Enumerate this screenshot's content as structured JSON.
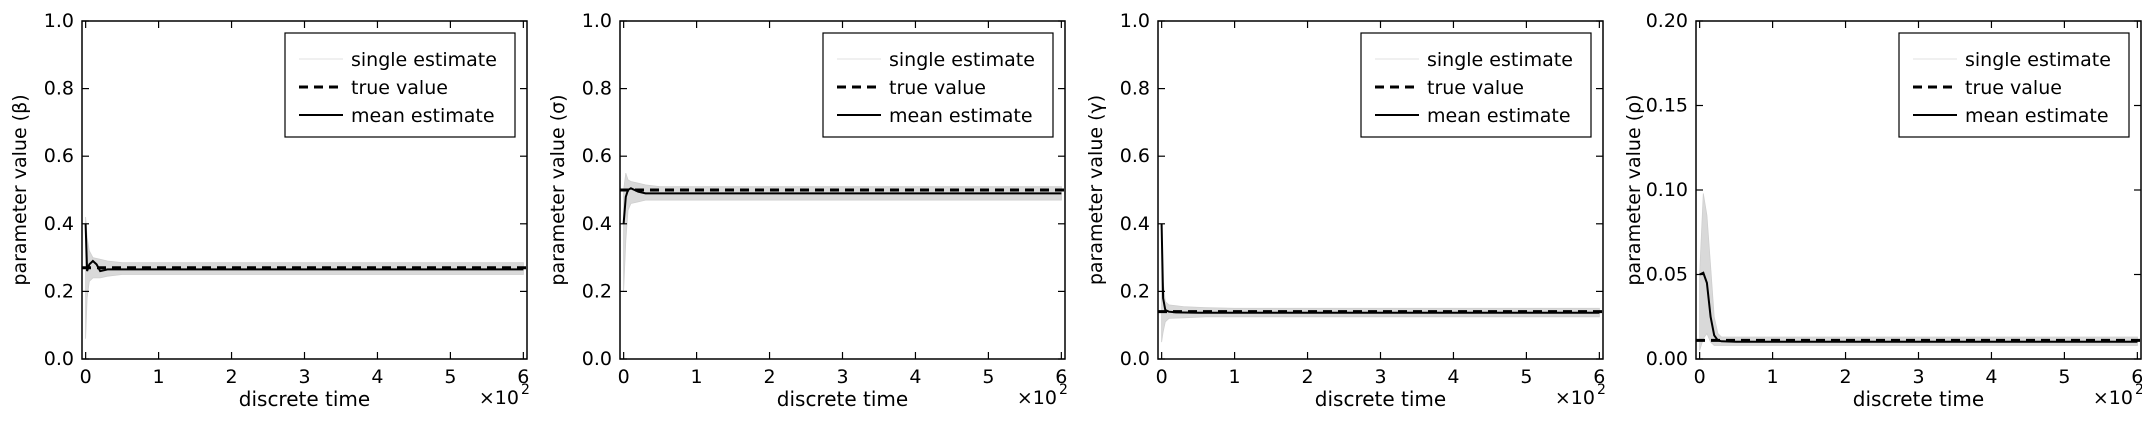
{
  "figure": {
    "xlabel": "discrete time",
    "x_multiplier": "×10",
    "x_multiplier_exp": "2",
    "legend": [
      {
        "label": "single estimate",
        "style": "thin-gray"
      },
      {
        "label": "true value",
        "style": "dashed-black"
      },
      {
        "label": "mean estimate",
        "style": "solid-black"
      }
    ]
  },
  "chart_data": [
    {
      "type": "line",
      "ylabel": "parameter value (β)",
      "xlim": [
        -0.05,
        6.05
      ],
      "ylim": [
        0,
        1.0
      ],
      "x_ticks": [
        "0",
        "1",
        "2",
        "3",
        "4",
        "5",
        "6"
      ],
      "y_ticks": [
        "0.0",
        "0.2",
        "0.4",
        "0.6",
        "0.8",
        "1.0"
      ],
      "y_tick_values": [
        0,
        0.2,
        0.4,
        0.6,
        0.8,
        1.0
      ],
      "true_value": 0.27,
      "mean_estimate": {
        "x": [
          0,
          0.02,
          0.05,
          0.1,
          0.15,
          0.2,
          0.3,
          0.5,
          1,
          2,
          3,
          4,
          5,
          6
        ],
        "y": [
          0.4,
          0.26,
          0.28,
          0.29,
          0.28,
          0.26,
          0.265,
          0.265,
          0.265,
          0.265,
          0.265,
          0.265,
          0.265,
          0.265
        ]
      },
      "single_estimate_band": {
        "x": [
          0,
          0.02,
          0.05,
          0.1,
          0.2,
          0.3,
          0.5,
          1,
          6
        ],
        "lower": [
          0.06,
          0.18,
          0.23,
          0.24,
          0.24,
          0.245,
          0.25,
          0.25,
          0.25
        ],
        "upper": [
          0.42,
          0.36,
          0.32,
          0.3,
          0.295,
          0.29,
          0.285,
          0.285,
          0.285
        ]
      },
      "legend_position": "top-right",
      "grid": false
    },
    {
      "type": "line",
      "ylabel": "parameter value (σ)",
      "xlim": [
        -0.05,
        6.05
      ],
      "ylim": [
        0,
        1.0
      ],
      "x_ticks": [
        "0",
        "1",
        "2",
        "3",
        "4",
        "5",
        "6"
      ],
      "y_ticks": [
        "0.0",
        "0.2",
        "0.4",
        "0.6",
        "0.8",
        "1.0"
      ],
      "y_tick_values": [
        0,
        0.2,
        0.4,
        0.6,
        0.8,
        1.0
      ],
      "true_value": 0.5,
      "mean_estimate": {
        "x": [
          0,
          0.03,
          0.06,
          0.1,
          0.15,
          0.2,
          0.3,
          0.5,
          1,
          2,
          3,
          4,
          5,
          6
        ],
        "y": [
          0.4,
          0.48,
          0.5,
          0.505,
          0.5,
          0.495,
          0.49,
          0.49,
          0.49,
          0.49,
          0.49,
          0.49,
          0.49,
          0.49
        ]
      },
      "single_estimate_band": {
        "x": [
          0,
          0.03,
          0.06,
          0.1,
          0.2,
          0.3,
          0.5,
          1,
          6
        ],
        "lower": [
          0.2,
          0.35,
          0.44,
          0.46,
          0.465,
          0.47,
          0.47,
          0.47,
          0.47
        ],
        "upper": [
          0.5,
          0.55,
          0.53,
          0.525,
          0.52,
          0.515,
          0.51,
          0.51,
          0.51
        ]
      },
      "legend_position": "top-right",
      "grid": false
    },
    {
      "type": "line",
      "ylabel": "parameter value (γ)",
      "xlim": [
        -0.05,
        6.05
      ],
      "ylim": [
        0,
        1.0
      ],
      "x_ticks": [
        "0",
        "1",
        "2",
        "3",
        "4",
        "5",
        "6"
      ],
      "y_ticks": [
        "0.0",
        "0.2",
        "0.4",
        "0.6",
        "0.8",
        "1.0"
      ],
      "y_tick_values": [
        0,
        0.2,
        0.4,
        0.6,
        0.8,
        1.0
      ],
      "true_value": 0.14,
      "mean_estimate": {
        "x": [
          0,
          0.02,
          0.05,
          0.1,
          0.2,
          0.5,
          1,
          2,
          3,
          4,
          5,
          6
        ],
        "y": [
          0.4,
          0.18,
          0.145,
          0.14,
          0.138,
          0.137,
          0.137,
          0.137,
          0.137,
          0.137,
          0.137,
          0.137
        ]
      },
      "single_estimate_band": {
        "x": [
          0,
          0.02,
          0.05,
          0.1,
          0.3,
          0.6,
          1,
          6
        ],
        "lower": [
          0.05,
          0.08,
          0.11,
          0.12,
          0.122,
          0.125,
          0.125,
          0.125
        ],
        "upper": [
          0.4,
          0.23,
          0.17,
          0.16,
          0.155,
          0.152,
          0.15,
          0.15
        ]
      },
      "legend_position": "top-right",
      "grid": false
    },
    {
      "type": "line",
      "ylabel": "parameter value (ρ)",
      "xlim": [
        -0.05,
        6.05
      ],
      "ylim": [
        0,
        0.2
      ],
      "x_ticks": [
        "0",
        "1",
        "2",
        "3",
        "4",
        "5",
        "6"
      ],
      "y_ticks": [
        "0.00",
        "0.05",
        "0.10",
        "0.15",
        "0.20"
      ],
      "y_tick_values": [
        0,
        0.05,
        0.1,
        0.15,
        0.2
      ],
      "true_value": 0.011,
      "mean_estimate": {
        "x": [
          0,
          0.05,
          0.1,
          0.15,
          0.2,
          0.25,
          0.3,
          0.5,
          1,
          2,
          3,
          4,
          5,
          6
        ],
        "y": [
          0.05,
          0.051,
          0.045,
          0.025,
          0.014,
          0.011,
          0.0105,
          0.0102,
          0.0102,
          0.0102,
          0.0102,
          0.0102,
          0.0102,
          0.0102
        ]
      },
      "single_estimate_band": {
        "x": [
          0,
          0.05,
          0.1,
          0.15,
          0.2,
          0.25,
          0.3,
          0.5,
          6
        ],
        "lower": [
          0.005,
          0.012,
          0.015,
          0.01,
          0.008,
          0.008,
          0.008,
          0.008,
          0.008
        ],
        "upper": [
          0.05,
          0.098,
          0.085,
          0.055,
          0.025,
          0.015,
          0.013,
          0.013,
          0.013
        ]
      },
      "legend_position": "top-right",
      "grid": false
    }
  ]
}
